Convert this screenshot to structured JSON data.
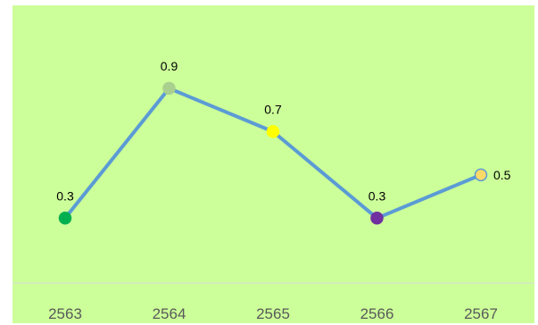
{
  "colors": {
    "background": "#ccff99",
    "line": "#5b9bd5",
    "axis": "#d9d9d9"
  },
  "chart_data": {
    "type": "line",
    "title": "",
    "xlabel": "",
    "ylabel": "",
    "categories": [
      "2563",
      "2564",
      "2565",
      "2566",
      "2567"
    ],
    "ylim": [
      0,
      1.3
    ],
    "grid": false,
    "legend": "none",
    "series": [
      {
        "values": [
          0.3,
          0.9,
          0.7,
          0.3,
          0.5
        ],
        "data_labels": [
          "0.3",
          "0.9",
          "0.7",
          "0.3",
          "0.5"
        ],
        "marker_colors": [
          "#00b050",
          "#a9d08e",
          "#ffff00",
          "#7030a0",
          "#ffd966"
        ],
        "marker_stroke": [
          "#00b050",
          "#a9d08e",
          "#ffff00",
          "#7030a0",
          "#5b9bd5"
        ],
        "label_positions": [
          "above",
          "above",
          "above",
          "above",
          "right"
        ]
      }
    ]
  }
}
